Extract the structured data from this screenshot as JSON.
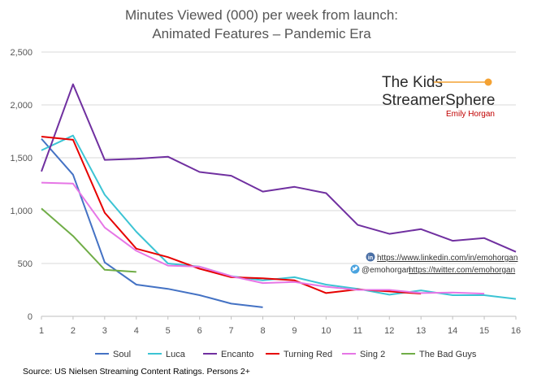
{
  "chart_data": {
    "type": "line",
    "title": [
      "Minutes Viewed (000) per week from launch:",
      "Animated Features – Pandemic Era"
    ],
    "xlabel": "",
    "ylabel": "",
    "x": [
      1,
      2,
      3,
      4,
      5,
      6,
      7,
      8,
      9,
      10,
      11,
      12,
      13,
      14,
      15,
      16
    ],
    "x_tick_labels": [
      "1",
      "2",
      "3",
      "4",
      "5",
      "6",
      "7",
      "8",
      "9",
      "10",
      "11",
      "12",
      "13",
      "14",
      "15",
      "16"
    ],
    "ylim": [
      0,
      2500
    ],
    "y_ticks": [
      0,
      500,
      1000,
      1500,
      2000,
      2500
    ],
    "y_tick_labels": [
      "0",
      "500",
      "1,000",
      "1,500",
      "2,000",
      "2,500"
    ],
    "grid": "horizontal",
    "legend_position": "bottom",
    "series": [
      {
        "name": "Soul",
        "color": "#4472c4",
        "x": [
          1,
          2,
          3,
          4,
          5,
          6,
          7,
          8
        ],
        "values": [
          1680,
          1340,
          510,
          300,
          260,
          200,
          120,
          85
        ]
      },
      {
        "name": "Luca",
        "color": "#3cc4d4",
        "x": [
          1,
          2,
          3,
          4,
          5,
          6,
          7,
          8,
          9,
          10,
          11,
          12,
          13,
          14,
          15,
          16
        ],
        "values": [
          1570,
          1710,
          1150,
          800,
          500,
          470,
          380,
          340,
          370,
          300,
          260,
          205,
          245,
          200,
          200,
          165
        ]
      },
      {
        "name": "Encanto",
        "color": "#7030a0",
        "x": [
          1,
          2,
          3,
          4,
          5,
          6,
          7,
          8,
          9,
          10,
          11,
          12,
          13,
          14,
          15,
          16
        ],
        "values": [
          1370,
          2195,
          1480,
          1490,
          1510,
          1365,
          1330,
          1180,
          1225,
          1165,
          865,
          780,
          825,
          715,
          740,
          610
        ]
      },
      {
        "name": "Turning Red",
        "color": "#e60000",
        "x": [
          1,
          2,
          3,
          4,
          5,
          6,
          7,
          8,
          9,
          10,
          11,
          12,
          13
        ],
        "values": [
          1700,
          1670,
          980,
          640,
          560,
          450,
          370,
          360,
          340,
          220,
          255,
          235,
          215
        ]
      },
      {
        "name": "Sing 2",
        "color": "#e676e6",
        "x": [
          1,
          2,
          3,
          4,
          5,
          6,
          7,
          8,
          9,
          10,
          11,
          12,
          13,
          14,
          15
        ],
        "values": [
          1265,
          1255,
          840,
          620,
          480,
          470,
          380,
          315,
          325,
          280,
          250,
          250,
          220,
          225,
          215
        ]
      },
      {
        "name": "The Bad Guys",
        "color": "#70ad47",
        "x": [
          1,
          2,
          3,
          4
        ],
        "values": [
          1020,
          760,
          440,
          420
        ]
      }
    ]
  },
  "source": "Source:  US Nielsen Streaming Content Ratings.  Persons 2+",
  "brand": {
    "line1": "The Kids",
    "line2": "StreamerSphere",
    "author": "Emily Horgan",
    "accent_color": "#f4a233"
  },
  "links": {
    "linkedin_icon": "linkedin-icon",
    "linkedin_url": "https://www.linkedin.com/in/emohorgan",
    "twitter_icon": "twitter-icon",
    "twitter_handle": "@emohorgan",
    "twitter_url": "https://twitter.com/emohorgan"
  }
}
